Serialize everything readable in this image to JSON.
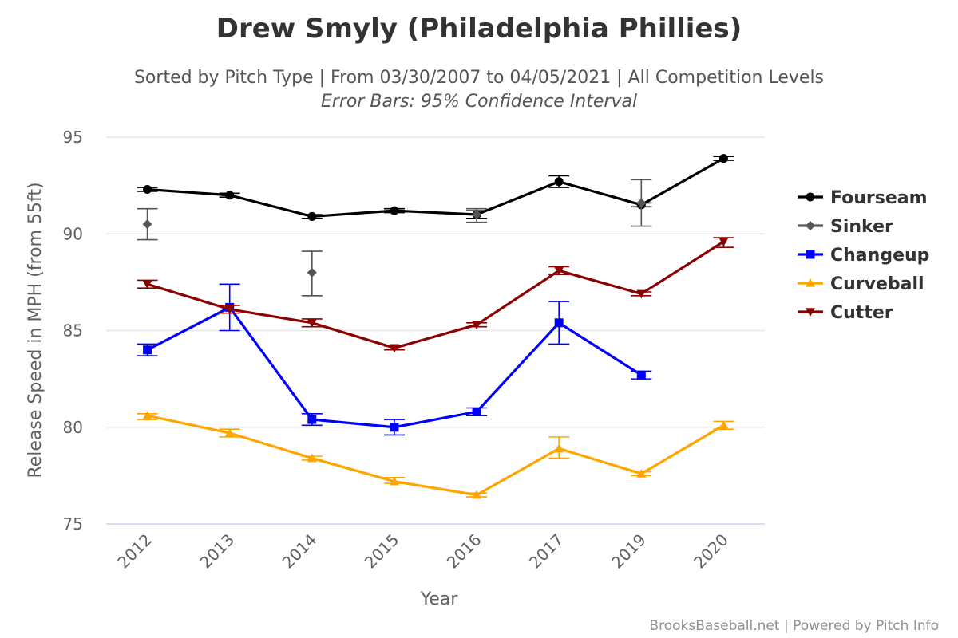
{
  "chart_data": {
    "type": "line",
    "title": "Drew Smyly (Philadelphia Phillies)",
    "subtitle": "Sorted by Pitch Type | From 03/30/2007 to 04/05/2021 | All Competition Levels",
    "subtitle2": "Error Bars: 95% Confidence Interval",
    "xlabel": "Year",
    "ylabel": "Release Speed in MPH (from 55ft)",
    "categories": [
      "2012",
      "2013",
      "2014",
      "2015",
      "2016",
      "2017",
      "2019",
      "2020"
    ],
    "ylim": [
      75,
      95
    ],
    "yticks": [
      75,
      80,
      85,
      90,
      95
    ],
    "grid": true,
    "legend_position": "right",
    "series": [
      {
        "name": "Fourseam",
        "color": "#000000",
        "marker": "circle",
        "connect": true,
        "values": [
          92.3,
          92.0,
          90.9,
          91.2,
          91.0,
          92.7,
          91.5,
          93.9
        ],
        "errors": [
          [
            92.2,
            92.4
          ],
          [
            91.9,
            92.1
          ],
          [
            90.8,
            91.0
          ],
          [
            91.1,
            91.3
          ],
          [
            90.8,
            91.2
          ],
          [
            92.4,
            93.0
          ],
          [
            91.4,
            91.6
          ],
          [
            93.8,
            94.0
          ]
        ]
      },
      {
        "name": "Sinker",
        "color": "#555555",
        "marker": "diamond",
        "connect": false,
        "values": [
          90.5,
          null,
          88.0,
          null,
          91.0,
          null,
          91.6,
          null
        ],
        "errors": [
          [
            89.7,
            91.3
          ],
          null,
          [
            86.8,
            89.1
          ],
          null,
          [
            90.6,
            91.3
          ],
          null,
          [
            90.4,
            92.8
          ],
          null
        ]
      },
      {
        "name": "Changeup",
        "color": "#0000ff",
        "marker": "square",
        "connect": true,
        "values": [
          84.0,
          86.2,
          80.4,
          80.0,
          80.8,
          85.4,
          82.7,
          null
        ],
        "errors": [
          [
            83.7,
            84.3
          ],
          [
            85.0,
            87.4
          ],
          [
            80.1,
            80.7
          ],
          [
            79.6,
            80.4
          ],
          [
            80.6,
            81.0
          ],
          [
            84.3,
            86.5
          ],
          [
            82.5,
            82.9
          ],
          null
        ]
      },
      {
        "name": "Curveball",
        "color": "#ffa500",
        "marker": "triangle",
        "connect": true,
        "values": [
          80.6,
          79.7,
          78.4,
          77.2,
          76.5,
          78.9,
          77.6,
          80.1
        ],
        "errors": [
          [
            80.4,
            80.7
          ],
          [
            79.5,
            79.9
          ],
          [
            78.3,
            78.5
          ],
          [
            77.1,
            77.4
          ],
          [
            76.4,
            76.6
          ],
          [
            78.4,
            79.5
          ],
          [
            77.5,
            77.7
          ],
          [
            79.9,
            80.3
          ]
        ]
      },
      {
        "name": "Cutter",
        "color": "#8b0000",
        "marker": "triangle-down",
        "connect": true,
        "values": [
          87.4,
          86.1,
          85.4,
          84.1,
          85.3,
          88.1,
          86.9,
          89.6
        ],
        "errors": [
          [
            87.2,
            87.6
          ],
          [
            85.9,
            86.3
          ],
          [
            85.2,
            85.6
          ],
          [
            84.0,
            84.2
          ],
          [
            85.2,
            85.4
          ],
          [
            87.9,
            88.3
          ],
          [
            86.8,
            87.0
          ],
          [
            89.3,
            89.8
          ]
        ]
      }
    ],
    "credits": "BrooksBaseball.net | Powered by Pitch Info"
  }
}
